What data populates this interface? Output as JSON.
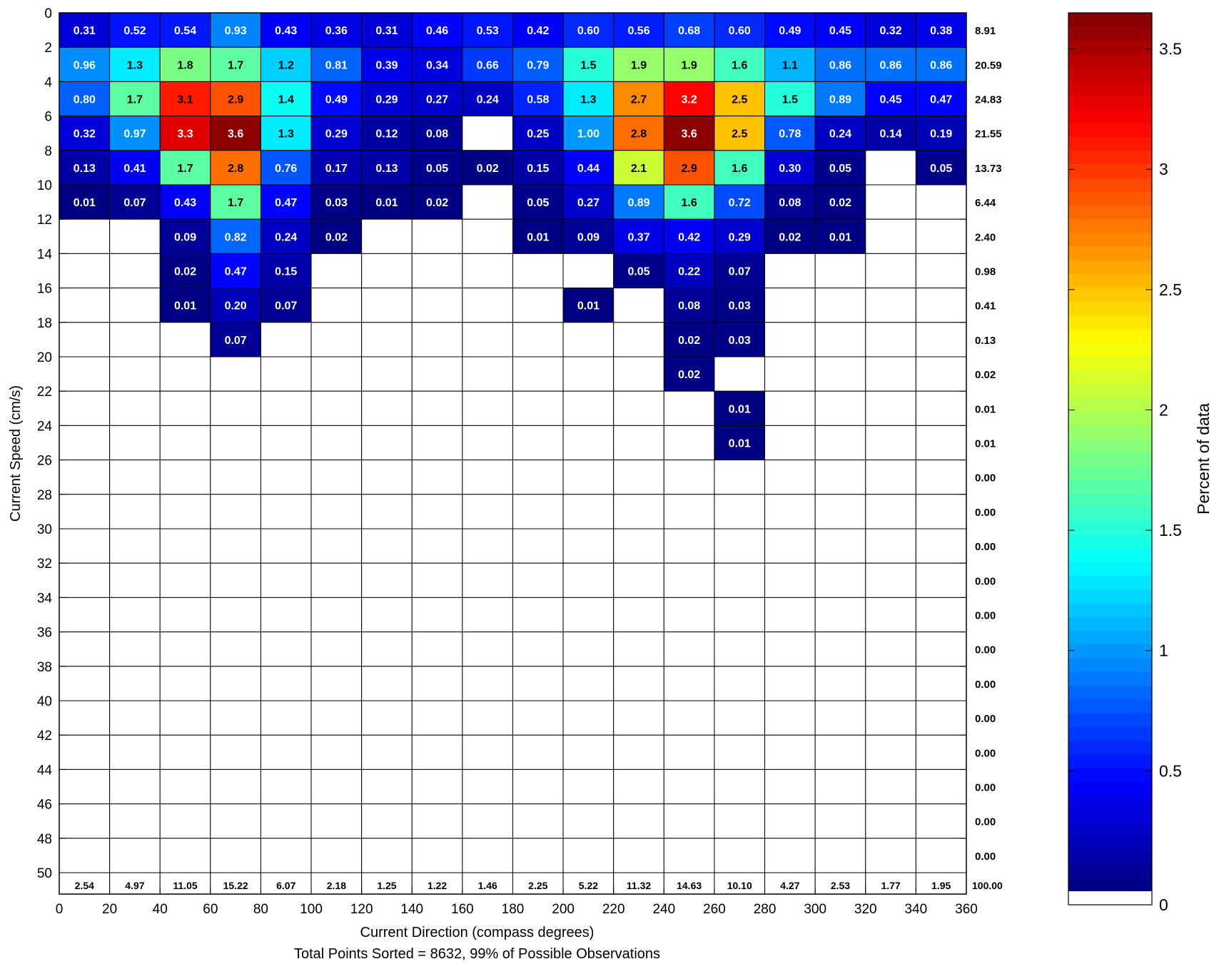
{
  "chart_data": {
    "type": "heatmap",
    "title": "",
    "xlabel": "Current Direction (compass degrees)",
    "ylabel": "Current Speed (cm/s)",
    "footnote": "Total Points Sorted = 8632, 99% of Possible Observations",
    "colorbar_label": "Percent of data",
    "colorbar_ticks": [
      "0",
      "0.5",
      "1",
      "1.5",
      "2",
      "2.5",
      "3",
      "3.5"
    ],
    "colorbar_range": [
      0,
      3.65
    ],
    "colormap": "jet",
    "x_range": [
      0,
      360
    ],
    "x_bin_width": 20,
    "y_range": [
      0,
      50
    ],
    "y_bin_width": 2,
    "x_ticks": [
      "0",
      "20",
      "40",
      "60",
      "80",
      "100",
      "120",
      "140",
      "160",
      "180",
      "200",
      "220",
      "240",
      "260",
      "280",
      "300",
      "320",
      "340",
      "360"
    ],
    "y_ticks": [
      "0",
      "2",
      "4",
      "6",
      "8",
      "10",
      "12",
      "14",
      "16",
      "18",
      "20",
      "22",
      "24",
      "26",
      "28",
      "30",
      "32",
      "34",
      "36",
      "38",
      "40",
      "42",
      "44",
      "46",
      "48",
      "50"
    ],
    "cells": [
      [
        "0.31",
        "0.52",
        "0.54",
        "0.93",
        "0.43",
        "0.36",
        "0.31",
        "0.46",
        "0.53",
        "0.42",
        "0.60",
        "0.56",
        "0.68",
        "0.60",
        "0.49",
        "0.45",
        "0.32",
        "0.38"
      ],
      [
        "0.96",
        "1.3",
        "1.8",
        "1.7",
        "1.2",
        "0.81",
        "0.39",
        "0.34",
        "0.66",
        "0.79",
        "1.5",
        "1.9",
        "1.9",
        "1.6",
        "1.1",
        "0.86",
        "0.86",
        "0.86"
      ],
      [
        "0.80",
        "1.7",
        "3.1",
        "2.9",
        "1.4",
        "0.49",
        "0.29",
        "0.27",
        "0.24",
        "0.58",
        "1.3",
        "2.7",
        "3.2",
        "2.5",
        "1.5",
        "0.89",
        "0.45",
        "0.47"
      ],
      [
        "0.32",
        "0.97",
        "3.3",
        "3.6",
        "1.3",
        "0.29",
        "0.12",
        "0.08",
        "",
        "0.25",
        "1.00",
        "2.8",
        "3.6",
        "2.5",
        "0.78",
        "0.24",
        "0.14",
        "0.19"
      ],
      [
        "0.13",
        "0.41",
        "1.7",
        "2.8",
        "0.76",
        "0.17",
        "0.13",
        "0.05",
        "0.02",
        "0.15",
        "0.44",
        "2.1",
        "2.9",
        "1.6",
        "0.30",
        "0.05",
        "",
        "0.05"
      ],
      [
        "0.01",
        "0.07",
        "0.43",
        "1.7",
        "0.47",
        "0.03",
        "0.01",
        "0.02",
        "",
        "0.05",
        "0.27",
        "0.89",
        "1.6",
        "0.72",
        "0.08",
        "0.02",
        "",
        ""
      ],
      [
        "",
        "",
        "0.09",
        "0.82",
        "0.24",
        "0.02",
        "",
        "",
        "",
        "0.01",
        "0.09",
        "0.37",
        "0.42",
        "0.29",
        "0.02",
        "0.01",
        "",
        ""
      ],
      [
        "",
        "",
        "0.02",
        "0.47",
        "0.15",
        "",
        "",
        "",
        "",
        "",
        "",
        "0.05",
        "0.22",
        "0.07",
        "",
        "",
        "",
        ""
      ],
      [
        "",
        "",
        "0.01",
        "0.20",
        "0.07",
        "",
        "",
        "",
        "",
        "",
        "0.01",
        "",
        "0.08",
        "0.03",
        "",
        "",
        "",
        ""
      ],
      [
        "",
        "",
        "",
        "0.07",
        "",
        "",
        "",
        "",
        "",
        "",
        "",
        "",
        "0.02",
        "0.03",
        "",
        "",
        "",
        ""
      ],
      [
        "",
        "",
        "",
        "",
        "",
        "",
        "",
        "",
        "",
        "",
        "",
        "",
        "0.02",
        "",
        "",
        "",
        "",
        ""
      ],
      [
        "",
        "",
        "",
        "",
        "",
        "",
        "",
        "",
        "",
        "",
        "",
        "",
        "",
        "0.01",
        "",
        "",
        "",
        ""
      ],
      [
        "",
        "",
        "",
        "",
        "",
        "",
        "",
        "",
        "",
        "",
        "",
        "",
        "",
        "0.01",
        "",
        "",
        "",
        ""
      ],
      [
        "",
        "",
        "",
        "",
        "",
        "",
        "",
        "",
        "",
        "",
        "",
        "",
        "",
        "",
        "",
        "",
        "",
        ""
      ],
      [
        "",
        "",
        "",
        "",
        "",
        "",
        "",
        "",
        "",
        "",
        "",
        "",
        "",
        "",
        "",
        "",
        "",
        ""
      ],
      [
        "",
        "",
        "",
        "",
        "",
        "",
        "",
        "",
        "",
        "",
        "",
        "",
        "",
        "",
        "",
        "",
        "",
        ""
      ],
      [
        "",
        "",
        "",
        "",
        "",
        "",
        "",
        "",
        "",
        "",
        "",
        "",
        "",
        "",
        "",
        "",
        "",
        ""
      ],
      [
        "",
        "",
        "",
        "",
        "",
        "",
        "",
        "",
        "",
        "",
        "",
        "",
        "",
        "",
        "",
        "",
        "",
        ""
      ],
      [
        "",
        "",
        "",
        "",
        "",
        "",
        "",
        "",
        "",
        "",
        "",
        "",
        "",
        "",
        "",
        "",
        "",
        ""
      ],
      [
        "",
        "",
        "",
        "",
        "",
        "",
        "",
        "",
        "",
        "",
        "",
        "",
        "",
        "",
        "",
        "",
        "",
        ""
      ],
      [
        "",
        "",
        "",
        "",
        "",
        "",
        "",
        "",
        "",
        "",
        "",
        "",
        "",
        "",
        "",
        "",
        "",
        ""
      ],
      [
        "",
        "",
        "",
        "",
        "",
        "",
        "",
        "",
        "",
        "",
        "",
        "",
        "",
        "",
        "",
        "",
        "",
        ""
      ],
      [
        "",
        "",
        "",
        "",
        "",
        "",
        "",
        "",
        "",
        "",
        "",
        "",
        "",
        "",
        "",
        "",
        "",
        ""
      ],
      [
        "",
        "",
        "",
        "",
        "",
        "",
        "",
        "",
        "",
        "",
        "",
        "",
        "",
        "",
        "",
        "",
        "",
        ""
      ],
      [
        "",
        "",
        "",
        "",
        "",
        "",
        "",
        "",
        "",
        "",
        "",
        "",
        "",
        "",
        "",
        "",
        "",
        ""
      ]
    ],
    "row_totals": [
      "8.91",
      "20.59",
      "24.83",
      "21.55",
      "13.73",
      "6.44",
      "2.40",
      "0.98",
      "0.41",
      "0.13",
      "0.02",
      "0.01",
      "0.01",
      "0.00",
      "0.00",
      "0.00",
      "0.00",
      "0.00",
      "0.00",
      "0.00",
      "0.00",
      "0.00",
      "0.00",
      "0.00",
      "0.00"
    ],
    "column_totals": [
      "2.54",
      "4.97",
      "11.05",
      "15.22",
      "6.07",
      "2.18",
      "1.25",
      "1.22",
      "1.46",
      "2.25",
      "5.22",
      "11.32",
      "14.63",
      "10.10",
      "4.27",
      "2.53",
      "1.77",
      "1.95"
    ],
    "grand_total": "100.00"
  }
}
